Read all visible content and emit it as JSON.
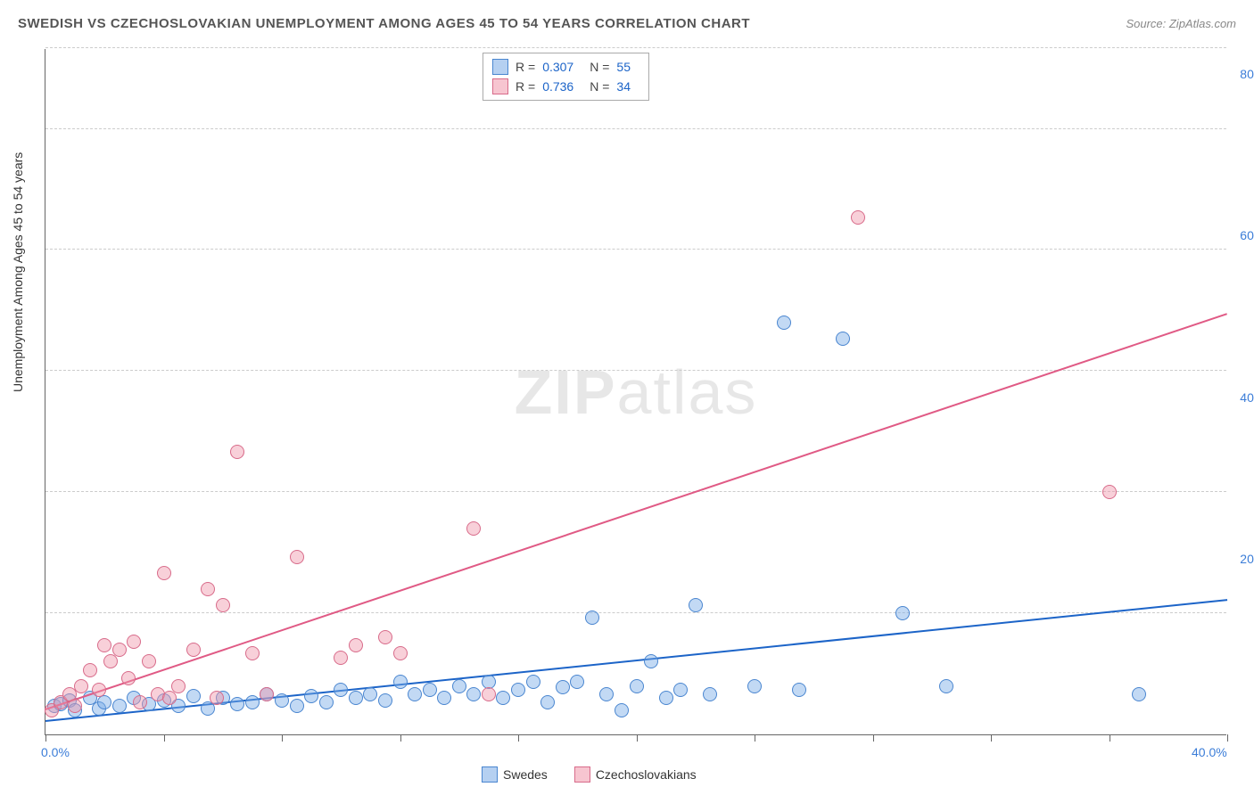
{
  "title": "SWEDISH VS CZECHOSLOVAKIAN UNEMPLOYMENT AMONG AGES 45 TO 54 YEARS CORRELATION CHART",
  "source": "Source: ZipAtlas.com",
  "ylabel": "Unemployment Among Ages 45 to 54 years",
  "watermark_bold": "ZIP",
  "watermark_light": "atlas",
  "chart": {
    "type": "scatter",
    "xlim": [
      0,
      40
    ],
    "ylim": [
      0,
      85
    ],
    "x_ticks": [
      0,
      4,
      8,
      12,
      16,
      20,
      24,
      28,
      32,
      36,
      40
    ],
    "x_tick_labels": {
      "0": "0.0%",
      "40": "40.0%"
    },
    "y_gridlines": [
      15,
      30,
      45,
      60,
      75,
      85
    ],
    "y_tick_labels": {
      "20": "20.0%",
      "40": "40.0%",
      "60": "60.0%",
      "80": "80.0%"
    },
    "background_color": "#ffffff",
    "grid_color": "#cccccc",
    "axis_color": "#666666",
    "label_color": "#3b7dd8",
    "marker_size": 16,
    "series": [
      {
        "name": "Swedes",
        "color_fill": "rgba(120,170,230,0.45)",
        "color_stroke": "#4a86d0",
        "trend_color": "#1c64c8",
        "R": "0.307",
        "N": "55",
        "trend": {
          "x1": 0,
          "y1": 1.5,
          "x2": 40,
          "y2": 16.5
        },
        "points": [
          [
            0.3,
            3.5
          ],
          [
            0.5,
            3.8
          ],
          [
            0.8,
            4.2
          ],
          [
            1.0,
            3.0
          ],
          [
            1.5,
            4.5
          ],
          [
            1.8,
            3.2
          ],
          [
            2.0,
            4.0
          ],
          [
            2.5,
            3.5
          ],
          [
            3.0,
            4.5
          ],
          [
            3.5,
            3.8
          ],
          [
            4.0,
            4.2
          ],
          [
            4.5,
            3.5
          ],
          [
            5.0,
            4.8
          ],
          [
            5.5,
            3.2
          ],
          [
            6.0,
            4.5
          ],
          [
            6.5,
            3.8
          ],
          [
            7.0,
            4.0
          ],
          [
            7.5,
            5.0
          ],
          [
            8.0,
            4.2
          ],
          [
            8.5,
            3.5
          ],
          [
            9.0,
            4.8
          ],
          [
            9.5,
            4.0
          ],
          [
            10.0,
            5.5
          ],
          [
            10.5,
            4.5
          ],
          [
            11.0,
            5.0
          ],
          [
            11.5,
            4.2
          ],
          [
            12.0,
            6.5
          ],
          [
            12.5,
            5.0
          ],
          [
            13.0,
            5.5
          ],
          [
            13.5,
            4.5
          ],
          [
            14.0,
            6.0
          ],
          [
            14.5,
            5.0
          ],
          [
            15.0,
            6.5
          ],
          [
            15.5,
            4.5
          ],
          [
            16.0,
            5.5
          ],
          [
            16.5,
            6.5
          ],
          [
            17.0,
            4.0
          ],
          [
            17.5,
            5.8
          ],
          [
            18.0,
            6.5
          ],
          [
            18.5,
            14.5
          ],
          [
            19.0,
            5.0
          ],
          [
            19.5,
            3.0
          ],
          [
            20.0,
            6.0
          ],
          [
            20.5,
            9.0
          ],
          [
            21.0,
            4.5
          ],
          [
            21.5,
            5.5
          ],
          [
            22.0,
            16.0
          ],
          [
            22.5,
            5.0
          ],
          [
            24.0,
            6.0
          ],
          [
            25.0,
            51.0
          ],
          [
            25.5,
            5.5
          ],
          [
            27.0,
            49.0
          ],
          [
            29.0,
            15.0
          ],
          [
            30.5,
            6.0
          ],
          [
            37.0,
            5.0
          ]
        ]
      },
      {
        "name": "Czechoslovakians",
        "color_fill": "rgba(240,150,170,0.45)",
        "color_stroke": "#d86b8a",
        "trend_color": "#e05a85",
        "R": "0.736",
        "N": "34",
        "trend": {
          "x1": 0,
          "y1": 3.0,
          "x2": 40,
          "y2": 52.0
        },
        "points": [
          [
            0.2,
            3.0
          ],
          [
            0.5,
            4.0
          ],
          [
            0.8,
            5.0
          ],
          [
            1.0,
            3.5
          ],
          [
            1.2,
            6.0
          ],
          [
            1.5,
            8.0
          ],
          [
            1.8,
            5.5
          ],
          [
            2.0,
            11.0
          ],
          [
            2.2,
            9.0
          ],
          [
            2.5,
            10.5
          ],
          [
            2.8,
            7.0
          ],
          [
            3.0,
            11.5
          ],
          [
            3.5,
            9.0
          ],
          [
            3.8,
            5.0
          ],
          [
            4.0,
            20.0
          ],
          [
            4.2,
            4.5
          ],
          [
            4.5,
            6.0
          ],
          [
            5.0,
            10.5
          ],
          [
            5.5,
            18.0
          ],
          [
            5.8,
            4.5
          ],
          [
            6.0,
            16.0
          ],
          [
            6.5,
            35.0
          ],
          [
            7.0,
            10.0
          ],
          [
            7.5,
            5.0
          ],
          [
            8.5,
            22.0
          ],
          [
            10.0,
            9.5
          ],
          [
            10.5,
            11.0
          ],
          [
            11.5,
            12.0
          ],
          [
            12.0,
            10.0
          ],
          [
            14.5,
            25.5
          ],
          [
            15.0,
            5.0
          ],
          [
            27.5,
            64.0
          ],
          [
            36.0,
            30.0
          ],
          [
            3.2,
            4.0
          ]
        ]
      }
    ]
  },
  "stats_box": {
    "rows": [
      {
        "swatch": "blue",
        "R_label": "R =",
        "R": "0.307",
        "N_label": "N =",
        "N": "55"
      },
      {
        "swatch": "pink",
        "R_label": "R =",
        "R": "0.736",
        "N_label": "N =",
        "N": "34"
      }
    ]
  },
  "legend": {
    "items": [
      {
        "swatch": "blue",
        "label": "Swedes"
      },
      {
        "swatch": "pink",
        "label": "Czechoslovakians"
      }
    ]
  }
}
